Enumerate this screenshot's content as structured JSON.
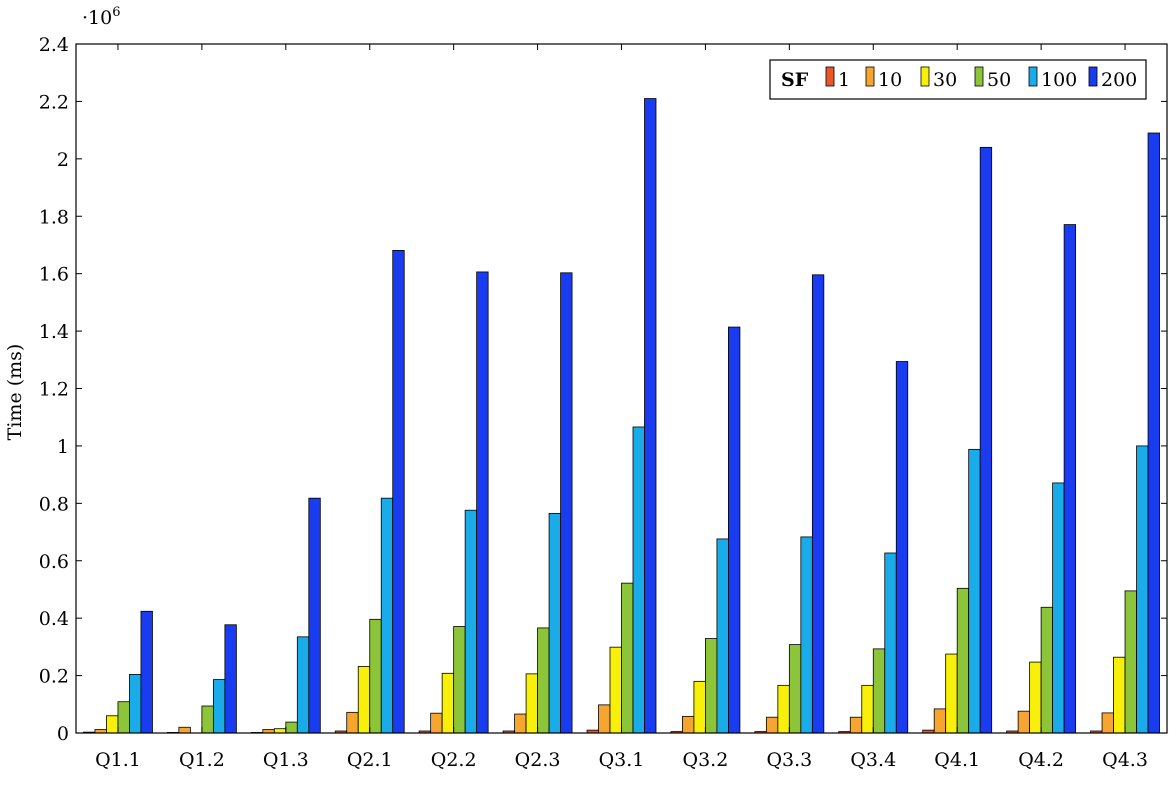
{
  "chart_data": {
    "type": "bar",
    "title": "",
    "xlabel": "",
    "ylabel": "Time (ms)",
    "y_scale_label": "·10",
    "y_scale_exponent": "6",
    "ylim": [
      0,
      2400000
    ],
    "yticks": [
      0,
      200000,
      400000,
      600000,
      800000,
      1000000,
      1200000,
      1400000,
      1600000,
      1800000,
      2000000,
      2200000,
      2400000
    ],
    "ytick_labels": [
      "0",
      "0.2",
      "0.4",
      "0.6",
      "0.8",
      "1",
      "1.2",
      "1.4",
      "1.6",
      "1.8",
      "2",
      "2.2",
      "2.4"
    ],
    "legend_title": "SF",
    "legend_position": "top-right",
    "grid": false,
    "categories": [
      "Q1.1",
      "Q1.2",
      "Q1.3",
      "Q2.1",
      "Q2.2",
      "Q2.3",
      "Q3.1",
      "Q3.2",
      "Q3.3",
      "Q3.4",
      "Q4.1",
      "Q4.2",
      "Q4.3"
    ],
    "series": [
      {
        "name": "1",
        "color": "#e8562a",
        "values": [
          3000,
          2000,
          2000,
          7000,
          7000,
          7000,
          10000,
          5000,
          5000,
          5000,
          10000,
          7000,
          7000
        ]
      },
      {
        "name": "10",
        "color": "#f5a530",
        "values": [
          12000,
          20000,
          12000,
          72000,
          69000,
          66000,
          98000,
          58000,
          55000,
          55000,
          84000,
          76000,
          70000
        ]
      },
      {
        "name": "30",
        "color": "#f8f00a",
        "values": [
          60000,
          0,
          15000,
          232000,
          208000,
          206000,
          299000,
          180000,
          166000,
          166000,
          275000,
          247000,
          264000
        ]
      },
      {
        "name": "50",
        "color": "#8cc43a",
        "values": [
          109000,
          94000,
          38000,
          396000,
          371000,
          366000,
          522000,
          329000,
          308000,
          293000,
          504000,
          438000,
          495000
        ]
      },
      {
        "name": "100",
        "color": "#1aace8",
        "values": [
          204000,
          186000,
          335000,
          818000,
          776000,
          765000,
          1066000,
          676000,
          683000,
          627000,
          988000,
          871000,
          1000000
        ]
      },
      {
        "name": "200",
        "color": "#1a3cf0",
        "values": [
          424000,
          377000,
          818000,
          1681000,
          1606000,
          1603000,
          2210000,
          1414000,
          1596000,
          1294000,
          2040000,
          1771000,
          2090000
        ]
      }
    ]
  }
}
